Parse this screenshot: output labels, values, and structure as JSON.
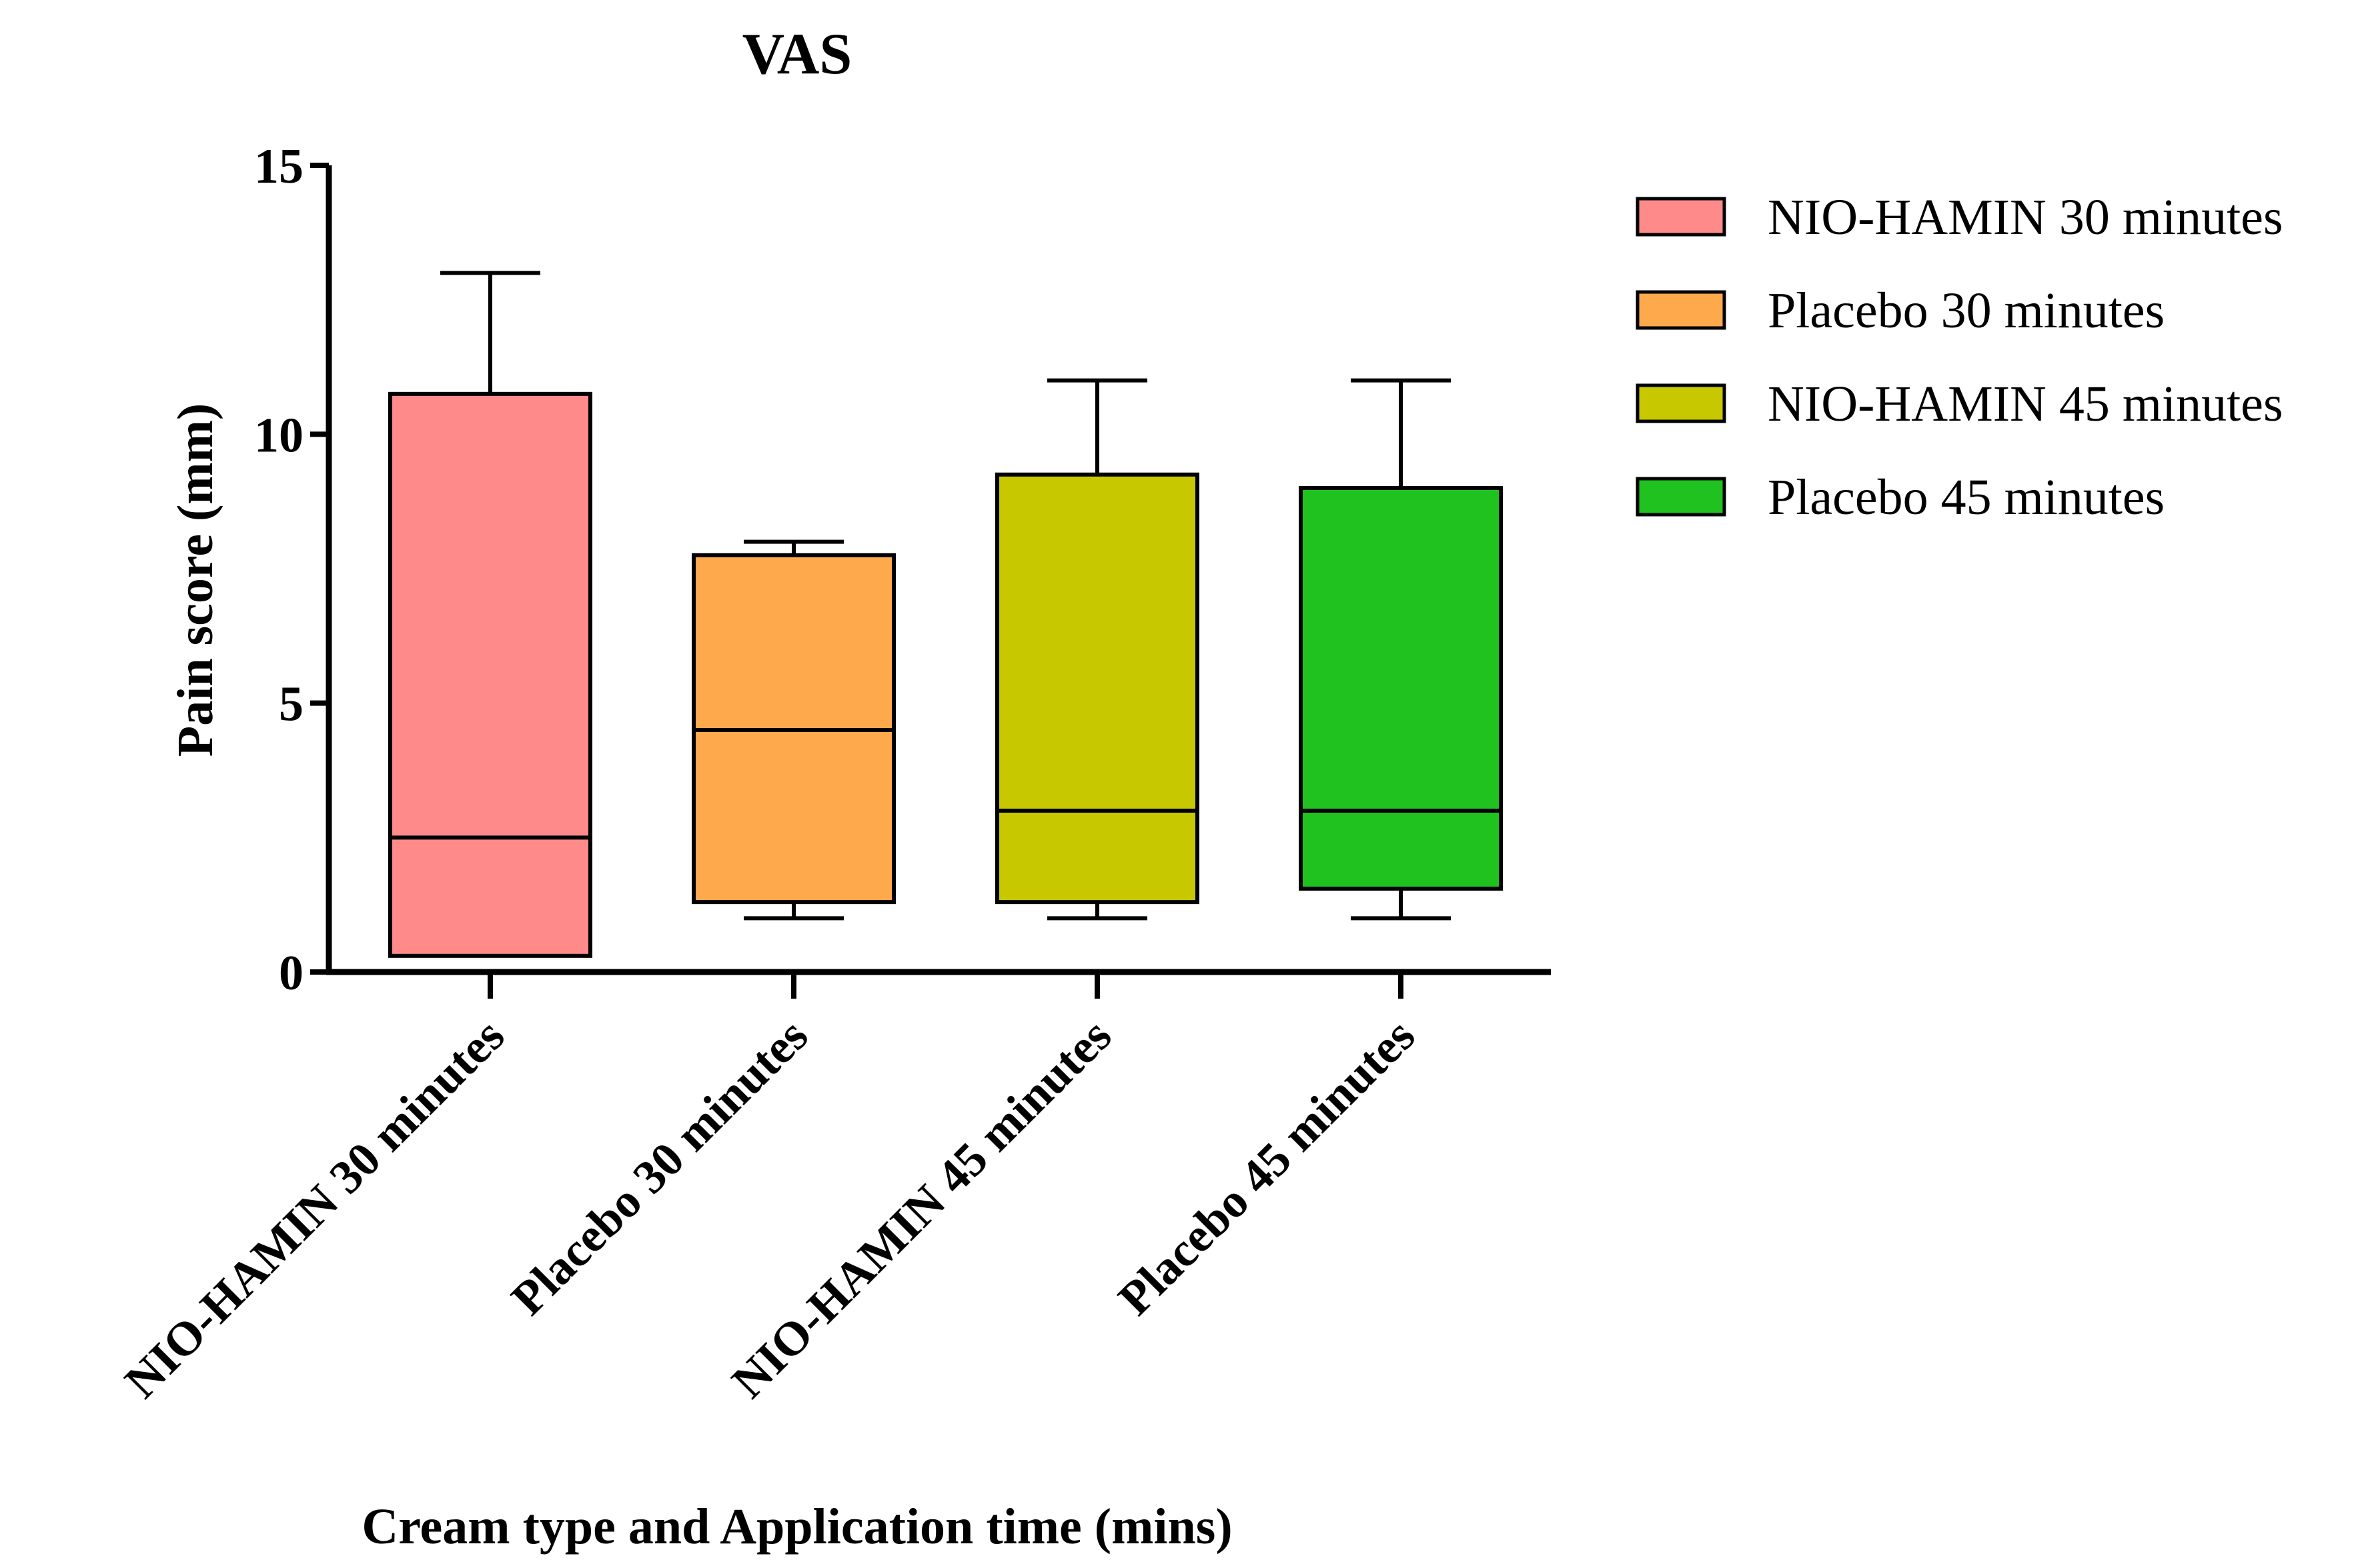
{
  "chart_data": {
    "type": "box",
    "title": "VAS",
    "xlabel": "Cream type and Application time (mins)",
    "ylabel": "Pain score (mm)",
    "ylim": [
      0,
      15
    ],
    "yticks": [
      0,
      5,
      10,
      15
    ],
    "grid": false,
    "legend_position": "right",
    "categories": [
      "NIO-HAMIN 30 minutes",
      "Placebo 30 minutes",
      "NIO-HAMIN 45 minutes",
      "Placebo 45 minutes"
    ],
    "series": [
      {
        "name": "NIO-HAMIN 30 minutes",
        "color": "#ff8a8a",
        "min": 0.3,
        "q1": 0.3,
        "median": 2.5,
        "q3": 10.75,
        "max": 13
      },
      {
        "name": "Placebo 30 minutes",
        "color": "#ffa94d",
        "min": 1,
        "q1": 1.3,
        "median": 4.5,
        "q3": 7.75,
        "max": 8
      },
      {
        "name": "NIO-HAMIN 45 minutes",
        "color": "#c8c800",
        "min": 1,
        "q1": 1.3,
        "median": 3,
        "q3": 9.25,
        "max": 11
      },
      {
        "name": "Placebo 45 minutes",
        "color": "#1fc21f",
        "min": 1,
        "q1": 1.55,
        "median": 3,
        "q3": 9,
        "max": 11
      }
    ]
  }
}
